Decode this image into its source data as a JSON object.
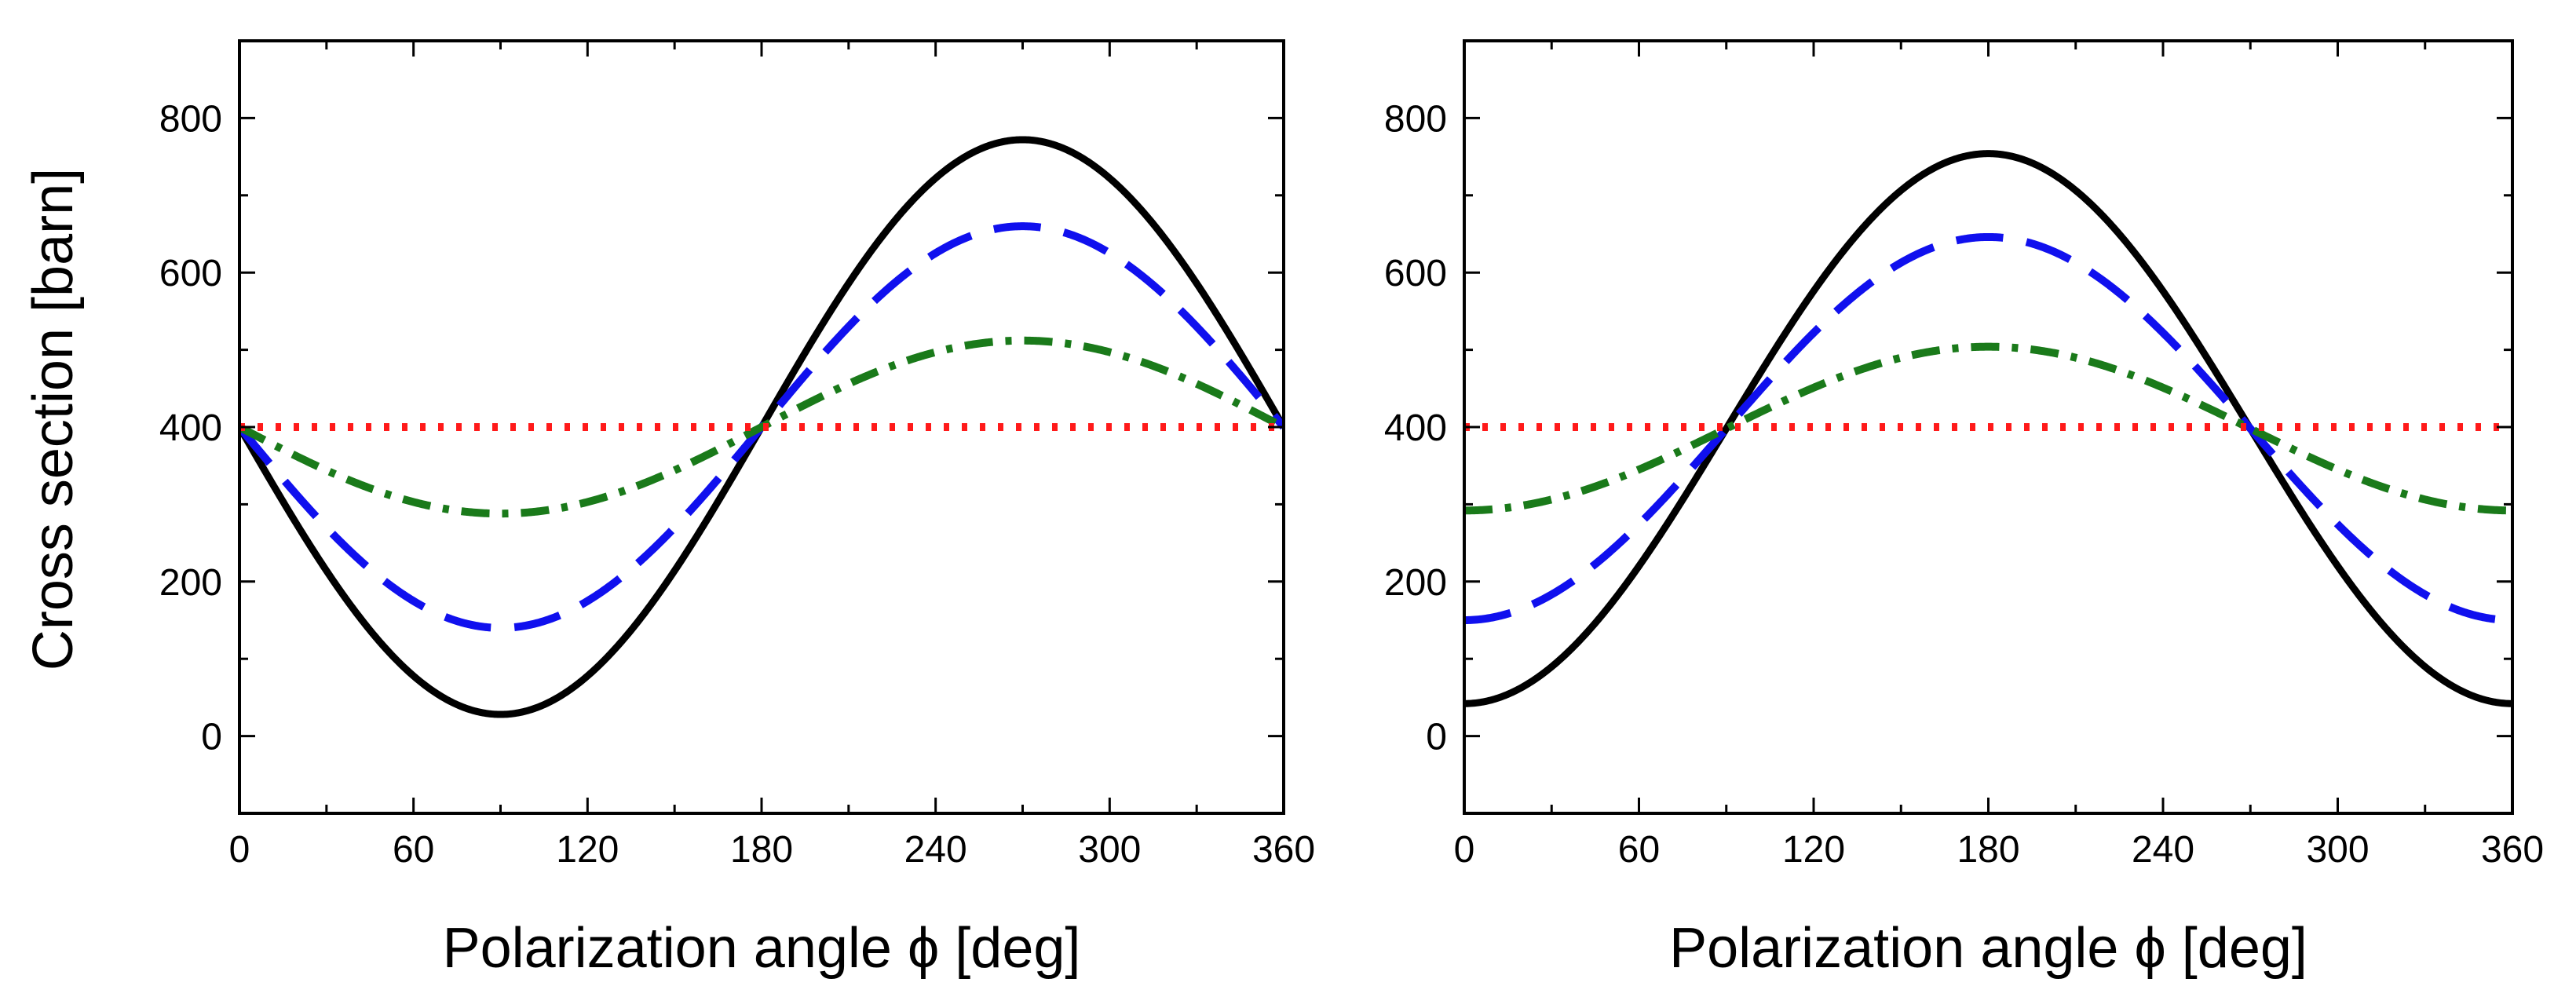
{
  "chart_data": [
    {
      "type": "line",
      "panel": "left",
      "xlabel": "Polarization angle ϕ [deg]",
      "ylabel": "Cross section [barn]",
      "xlim": [
        0,
        360
      ],
      "ylim": [
        -100,
        900
      ],
      "xticks": [
        0,
        60,
        120,
        180,
        240,
        300,
        360
      ],
      "yticks": [
        0,
        200,
        400,
        600,
        800
      ],
      "x_minor_step": 30,
      "y_minor_step": 100,
      "series": [
        {
          "name": "solid",
          "color": "#000000",
          "dash": "solid",
          "mean": 400,
          "amplitude": 372,
          "phase": "-sin",
          "values_at_ticks": [
            400,
            78,
            78,
            400,
            722,
            722,
            400
          ]
        },
        {
          "name": "dashed",
          "color": "#1010ee",
          "dash": "dashed",
          "mean": 400,
          "amplitude": 260,
          "phase": "-sin",
          "values_at_ticks": [
            400,
            175,
            175,
            400,
            625,
            625,
            400
          ]
        },
        {
          "name": "dash-dot",
          "color": "#1a7a1a",
          "dash": "dashdot",
          "mean": 400,
          "amplitude": 112,
          "phase": "-sin",
          "values_at_ticks": [
            400,
            303,
            303,
            400,
            497,
            497,
            400
          ]
        },
        {
          "name": "dotted",
          "color": "#ff1a1a",
          "dash": "dotted",
          "mean": 400,
          "amplitude": 0,
          "phase": "const",
          "values_at_ticks": [
            400,
            400,
            400,
            400,
            400,
            400,
            400
          ]
        }
      ]
    },
    {
      "type": "line",
      "panel": "right",
      "xlabel": "Polarization angle ϕ [deg]",
      "ylabel": "",
      "xlim": [
        0,
        360
      ],
      "ylim": [
        -100,
        900
      ],
      "xticks": [
        0,
        60,
        120,
        180,
        240,
        300,
        360
      ],
      "yticks": [
        0,
        200,
        400,
        600,
        800
      ],
      "x_minor_step": 30,
      "y_minor_step": 100,
      "series": [
        {
          "name": "solid",
          "color": "#000000",
          "dash": "solid",
          "mean": 398,
          "amplitude": 356,
          "phase": "-cos",
          "values_at_ticks": [
            42,
            220,
            576,
            754,
            576,
            220,
            42
          ]
        },
        {
          "name": "dashed",
          "color": "#1010ee",
          "dash": "dashed",
          "mean": 398,
          "amplitude": 248,
          "phase": "-cos",
          "values_at_ticks": [
            150,
            274,
            522,
            646,
            522,
            274,
            150
          ]
        },
        {
          "name": "dash-dot",
          "color": "#1a7a1a",
          "dash": "dashdot",
          "mean": 398,
          "amplitude": 106,
          "phase": "-cos",
          "values_at_ticks": [
            292,
            345,
            451,
            504,
            451,
            345,
            292
          ]
        },
        {
          "name": "dotted",
          "color": "#ff1a1a",
          "dash": "dotted",
          "mean": 400,
          "amplitude": 0,
          "phase": "const",
          "values_at_ticks": [
            400,
            400,
            400,
            400,
            400,
            400,
            400
          ]
        }
      ]
    }
  ]
}
